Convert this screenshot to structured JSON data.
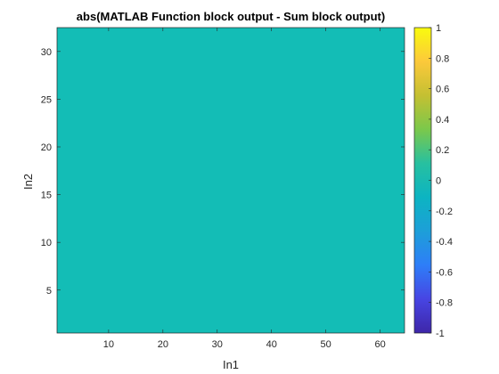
{
  "chart_data": {
    "type": "heatmap",
    "title": "abs(MATLAB Function block output - Sum block output)",
    "xlabel": "In1",
    "ylabel": "In2",
    "xlim": [
      0.5,
      64.5
    ],
    "ylim": [
      0.5,
      32.5
    ],
    "xticks": [
      10,
      20,
      30,
      40,
      50,
      60
    ],
    "xtick_labels": [
      "10",
      "20",
      "30",
      "40",
      "50",
      "60"
    ],
    "yticks": [
      5,
      10,
      15,
      20,
      25,
      30
    ],
    "ytick_labels": [
      "5",
      "10",
      "15",
      "20",
      "25",
      "30"
    ],
    "value": 0,
    "x_range": [
      1,
      64
    ],
    "y_range": [
      1,
      32
    ],
    "fill_color": "#13bdb6",
    "colorbar": {
      "limits": [
        -1,
        1
      ],
      "ticks": [
        -1,
        -0.8,
        -0.6,
        -0.4,
        -0.2,
        0,
        0.2,
        0.4,
        0.6,
        0.8,
        1
      ],
      "tick_labels": [
        "-1",
        "-0.8",
        "-0.6",
        "-0.4",
        "-0.2",
        "0",
        "0.2",
        "0.4",
        "0.6",
        "0.8",
        "1"
      ],
      "colormap": "parula",
      "stops": [
        "#3e26a8",
        "#4745e3",
        "#2e7ef8",
        "#1d9fd8",
        "#0cb4c2",
        "#27c0a0",
        "#7bc84b",
        "#c4c032",
        "#fcc93b",
        "#f9fb0e"
      ]
    },
    "axis_color": "#262626"
  }
}
